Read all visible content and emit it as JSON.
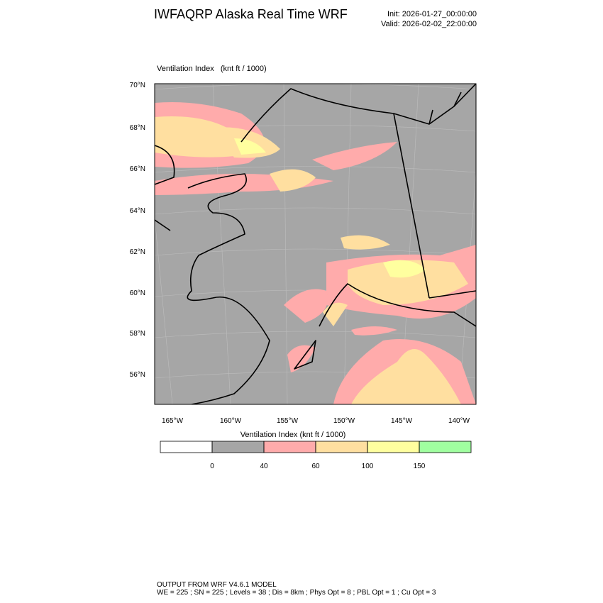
{
  "header": {
    "title": "IWFAQRP Alaska Real Time WRF",
    "init": "Init: 2026-01-27_00:00:00",
    "valid": "Valid: 2026-02-02_22:00:00"
  },
  "map": {
    "field_label": "Ventilation Index   (knt ft / 1000)",
    "lat_labels": [
      "70°N",
      "68°N",
      "66°N",
      "64°N",
      "62°N",
      "60°N",
      "58°N",
      "56°N"
    ],
    "lon_labels": [
      "165°W",
      "160°W",
      "155°W",
      "150°W",
      "145°W",
      "140°W"
    ]
  },
  "colorbar": {
    "label": "Ventilation Index  (knt ft / 1000)",
    "colors": [
      "#ffffff",
      "#a6a6a6",
      "#ffabab",
      "#ffdfa0",
      "#ffff9f",
      "#a0ffa0"
    ],
    "ticks": [
      0,
      40,
      60,
      100,
      150
    ]
  },
  "footer": {
    "line1": "OUTPUT FROM WRF V4.6.1 MODEL",
    "line2": "WE = 225 ; SN = 225 ; Levels = 38 ; Dis = 8km ; Phys Opt = 8 ; PBL Opt = 1 ; Cu Opt = 3"
  }
}
